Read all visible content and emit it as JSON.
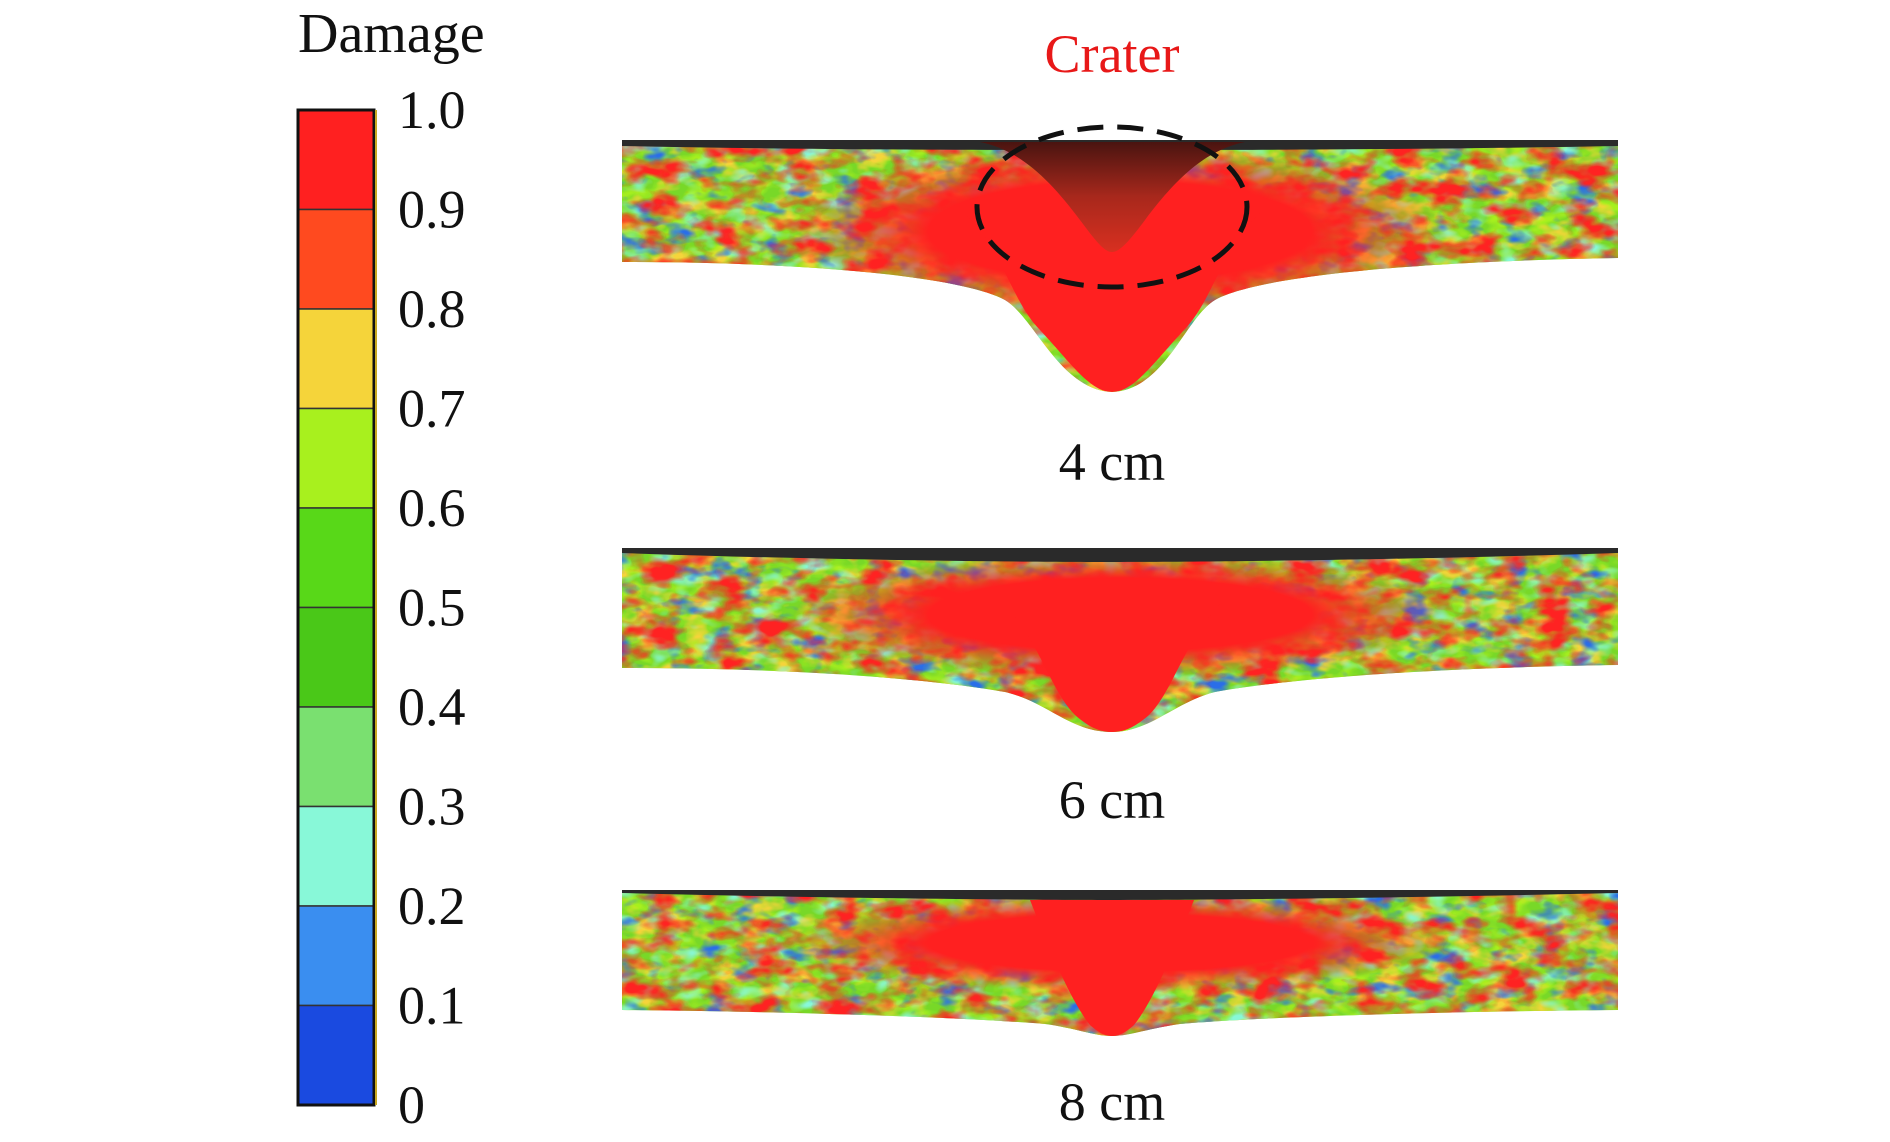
{
  "colorbar": {
    "title": "Damage",
    "ticks": [
      "1.0",
      "0.9",
      "0.8",
      "0.7",
      "0.6",
      "0.5",
      "0.4",
      "0.3",
      "0.2",
      "0.1",
      "0"
    ],
    "band_colors": [
      "#ff2020",
      "#ff4a1f",
      "#f5d43a",
      "#a8f01e",
      "#58d818",
      "#4ac818",
      "#7ae070",
      "#88f8d8",
      "#3a8ef0",
      "#1a4ae0"
    ]
  },
  "annotation": {
    "label": "Crater",
    "color": "#e81818"
  },
  "panels": [
    {
      "label": "4 cm"
    },
    {
      "label": "6 cm"
    },
    {
      "label": "8 cm"
    }
  ]
}
